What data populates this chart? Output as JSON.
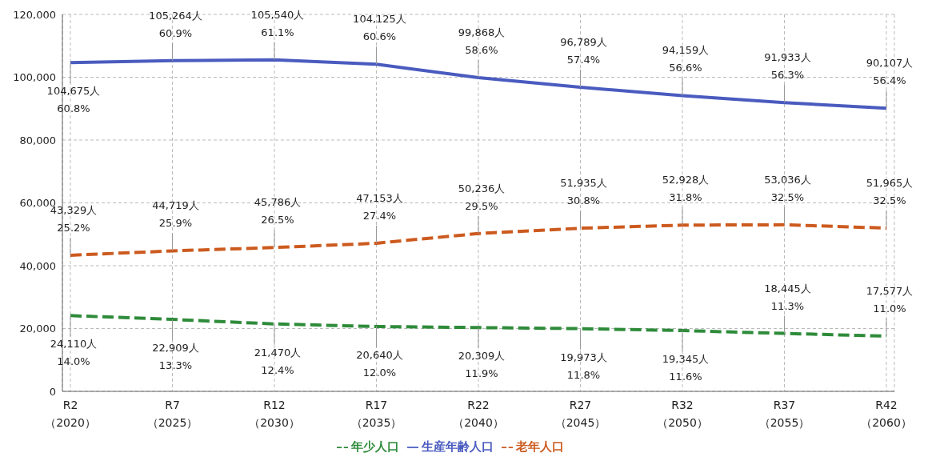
{
  "chart_data": {
    "type": "line",
    "categories": [
      "R2\n（2020）",
      "R7\n（2025）",
      "R12\n（2030）",
      "R17\n（2035）",
      "R22\n（2040）",
      "R27\n（2045）",
      "R32\n（2050）",
      "R37\n（2055）",
      "R42\n（2060）"
    ],
    "series": [
      {
        "name": "年少人口",
        "color": "#2e8b3a",
        "line_style": "dashed",
        "values": [
          24110,
          22909,
          21470,
          20640,
          20309,
          19973,
          19345,
          18445,
          17577
        ],
        "value_labels": [
          "24,110人\n14.0%",
          "22,909人\n13.3%",
          "21,470人\n12.4%",
          "20,640人\n12.0%",
          "20,309人\n11.9%",
          "19,973人\n11.8%",
          "19,345人\n11.6%",
          "18,445人\n11.3%",
          "17,577人\n11.0%"
        ]
      },
      {
        "name": "生産年齢人口",
        "color": "#4a5bbf",
        "line_style": "solid",
        "values": [
          104675,
          105264,
          105540,
          104125,
          99868,
          96789,
          94159,
          91933,
          90107
        ],
        "value_labels": [
          "104,675人\n60.8%",
          "105,264人\n60.9%",
          "105,540人\n61.1%",
          "104,125人\n60.6%",
          "99,868人\n58.6%",
          "96,789人\n57.4%",
          "94,159人\n56.6%",
          "91,933人\n56.3%",
          "90,107人\n56.4%"
        ]
      },
      {
        "name": "老年人口",
        "color": "#cc5a1e",
        "line_style": "dashed",
        "values": [
          43329,
          44719,
          45786,
          47153,
          50236,
          51935,
          52928,
          53036,
          51965
        ],
        "value_labels": [
          "43,329人\n25.2%",
          "44,719人\n25.9%",
          "45,786人\n26.5%",
          "47,153人\n27.4%",
          "50,236人\n29.5%",
          "51,935人\n30.8%",
          "52,928人\n31.8%",
          "53,036人\n32.5%",
          "51,965人\n32.5%"
        ]
      }
    ],
    "ylim": [
      0,
      120000
    ],
    "yticks": [
      0,
      {
        "value": 20000,
        "label": "20,000"
      },
      {
        "value": 40000,
        "label": "40,000"
      },
      {
        "value": 60000,
        "label": "60,000"
      },
      {
        "value": 80000,
        "label": "80,000"
      },
      {
        "value": 100000,
        "label": "100,000"
      },
      {
        "value": 120000,
        "label": "120,000"
      }
    ],
    "grid": true,
    "legend": "bottom",
    "marker": "none"
  }
}
